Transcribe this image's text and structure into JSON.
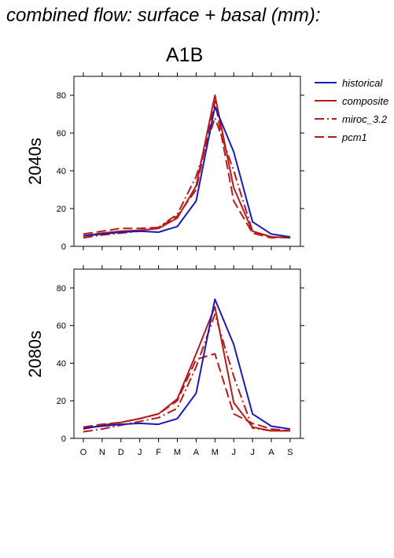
{
  "header": {
    "title": "combined flow: surface + basal (mm):",
    "scenario": "A1B"
  },
  "colors": {
    "historical": "#1a1ab8",
    "projection": "#b81a1a",
    "axis": "#000000"
  },
  "chart_data": [
    {
      "type": "line",
      "panel_label": "2040s",
      "categories": [
        "O",
        "N",
        "D",
        "J",
        "F",
        "M",
        "A",
        "M",
        "J",
        "J",
        "A",
        "S"
      ],
      "ylim": [
        0,
        90
      ],
      "yticks": [
        0,
        20,
        40,
        60,
        80
      ],
      "series": [
        {
          "name": "historical",
          "style": "solid",
          "color": "#1a1ab8",
          "values": [
            5.5,
            6.5,
            7.5,
            8,
            7.5,
            10.5,
            24,
            74,
            50,
            13,
            6.5,
            5
          ]
        },
        {
          "name": "composite",
          "style": "solid",
          "color": "#b81a1a",
          "values": [
            5.5,
            7,
            8,
            8.5,
            9.5,
            15,
            32,
            80,
            31,
            8,
            5,
            4.5
          ]
        },
        {
          "name": "miroc_3.2",
          "style": "dashdot",
          "color": "#b81a1a",
          "values": [
            4.5,
            6,
            7,
            8,
            10,
            17,
            37,
            68,
            40,
            8,
            5,
            4.5
          ]
        },
        {
          "name": "pcm1",
          "style": "dashed",
          "color": "#b81a1a",
          "values": [
            6.5,
            8,
            9.5,
            9.5,
            10,
            16,
            30,
            77,
            24,
            7,
            4.5,
            5
          ]
        }
      ]
    },
    {
      "type": "line",
      "panel_label": "2080s",
      "categories": [
        "O",
        "N",
        "D",
        "J",
        "F",
        "M",
        "A",
        "M",
        "J",
        "J",
        "A",
        "S"
      ],
      "ylim": [
        0,
        90
      ],
      "yticks": [
        0,
        20,
        40,
        60,
        80
      ],
      "series": [
        {
          "name": "historical",
          "style": "solid",
          "color": "#1a1ab8",
          "values": [
            5.5,
            6.5,
            7.5,
            8,
            7.5,
            10.5,
            24,
            74,
            50,
            13,
            6.5,
            5
          ]
        },
        {
          "name": "composite",
          "style": "solid",
          "color": "#b81a1a",
          "values": [
            5,
            7,
            8.5,
            10.5,
            13,
            21,
            45,
            70,
            19,
            6,
            4,
            4
          ]
        },
        {
          "name": "miroc_3.2",
          "style": "dashdot",
          "color": "#b81a1a",
          "values": [
            3.5,
            5,
            7,
            9,
            11,
            16,
            38,
            66,
            33,
            5.5,
            4,
            4
          ]
        },
        {
          "name": "pcm1",
          "style": "dashed",
          "color": "#b81a1a",
          "values": [
            6,
            7.5,
            8.5,
            10.5,
            13,
            20,
            42,
            45,
            13,
            8,
            5,
            4
          ]
        }
      ]
    }
  ],
  "legend": {
    "position": "top-right",
    "items": [
      {
        "label": "historical",
        "style": "solid",
        "color": "#1a1ab8"
      },
      {
        "label": "composite",
        "style": "solid",
        "color": "#b81a1a"
      },
      {
        "label": "miroc_3.2",
        "style": "dashdot",
        "color": "#b81a1a"
      },
      {
        "label": "pcm1",
        "style": "dashed",
        "color": "#b81a1a"
      }
    ]
  }
}
